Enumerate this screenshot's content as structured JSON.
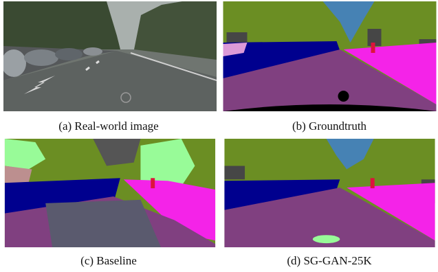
{
  "figure": {
    "panels": [
      {
        "caption": "(a) Real-world image"
      },
      {
        "caption": "(b) Groundtruth"
      },
      {
        "caption": "(c) Baseline"
      },
      {
        "caption": "(d) SG-GAN-25K"
      }
    ]
  }
}
